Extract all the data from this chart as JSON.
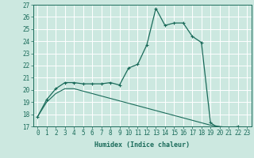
{
  "xlabel": "Humidex (Indice chaleur)",
  "background_color": "#cce8e0",
  "grid_color": "#ffffff",
  "line_color": "#1a6b5a",
  "xlim": [
    -0.5,
    23.5
  ],
  "ylim": [
    17,
    27
  ],
  "yticks": [
    17,
    18,
    19,
    20,
    21,
    22,
    23,
    24,
    25,
    26,
    27
  ],
  "xticks": [
    0,
    1,
    2,
    3,
    4,
    5,
    6,
    7,
    8,
    9,
    10,
    11,
    12,
    13,
    14,
    15,
    16,
    17,
    18,
    19,
    20,
    21,
    22,
    23
  ],
  "curve1_x": [
    0,
    1,
    2,
    3,
    4,
    5,
    6,
    7,
    8,
    9,
    10,
    11,
    12,
    13,
    14,
    15,
    16,
    17,
    18,
    19,
    20,
    21,
    22,
    23
  ],
  "curve1_y": [
    17.8,
    19.2,
    20.1,
    20.6,
    20.6,
    20.5,
    20.5,
    20.5,
    20.6,
    20.4,
    21.8,
    22.1,
    23.7,
    26.7,
    25.3,
    25.5,
    25.5,
    24.4,
    23.9,
    17.3,
    16.8,
    16.8,
    17.0,
    16.7
  ],
  "curve2_x": [
    0,
    1,
    2,
    3,
    4,
    5,
    6,
    7,
    8,
    9,
    10,
    11,
    12,
    13,
    14,
    15,
    16,
    17,
    18,
    19,
    20,
    21,
    22,
    23
  ],
  "curve2_y": [
    17.8,
    19.0,
    19.7,
    20.1,
    20.1,
    19.9,
    19.7,
    19.5,
    19.3,
    19.1,
    18.9,
    18.7,
    18.5,
    18.3,
    18.1,
    17.9,
    17.7,
    17.5,
    17.3,
    17.1,
    17.0,
    16.9,
    16.8,
    16.7
  ],
  "xlabel_fontsize": 6.0,
  "tick_fontsize": 5.5,
  "linewidth1": 0.9,
  "linewidth2": 0.8,
  "marker_size": 3.0
}
